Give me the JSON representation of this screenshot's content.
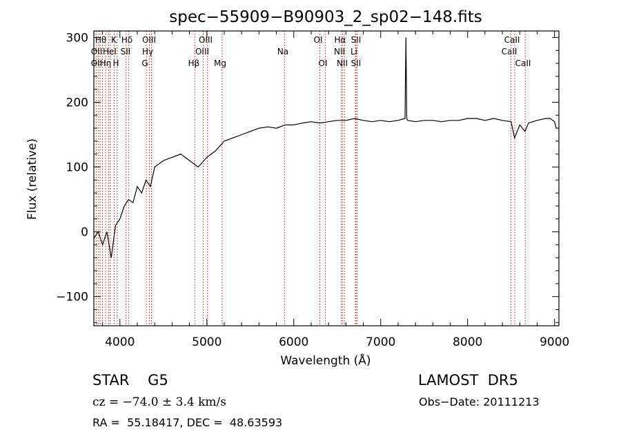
{
  "chart_data": {
    "type": "line",
    "title": "spec−55909−B90903_2_sp02−148.fits",
    "xlabel": "Wavelength (Å)",
    "ylabel": "Flux (relative)",
    "xlim": [
      3700,
      9050
    ],
    "ylim": [
      -145,
      310
    ],
    "x_ticks": [
      4000,
      5000,
      6000,
      7000,
      8000,
      9000
    ],
    "y_ticks": [
      -100,
      0,
      100,
      200,
      300
    ],
    "x_tick_labels": [
      "4000",
      "5000",
      "6000",
      "7000",
      "8000",
      "9000"
    ],
    "y_tick_labels": [
      "−100",
      "0",
      "100",
      "200",
      "300"
    ],
    "series": [
      {
        "x": [
          3700,
          3750,
          3800,
          3850,
          3900,
          3950,
          4000,
          4050,
          4100,
          4150,
          4200,
          4250,
          4300,
          4350,
          4400,
          4450,
          4500,
          4600,
          4700,
          4800,
          4900,
          5000,
          5100,
          5200,
          5300,
          5400,
          5500,
          5600,
          5700,
          5800,
          5900,
          6000,
          6100,
          6200,
          6300,
          6400,
          6500,
          6600,
          6700,
          6800,
          6900,
          7000,
          7100,
          7200,
          7280,
          7290,
          7300,
          7310,
          7400,
          7500,
          7600,
          7700,
          7800,
          7900,
          8000,
          8100,
          8200,
          8300,
          8400,
          8500,
          8540,
          8600,
          8660,
          8700,
          8800,
          8900,
          8950,
          9000,
          9020
        ],
        "y": [
          -10,
          0,
          -20,
          0,
          -40,
          10,
          20,
          40,
          50,
          45,
          70,
          60,
          80,
          70,
          100,
          105,
          110,
          115,
          120,
          110,
          100,
          115,
          125,
          140,
          145,
          150,
          155,
          160,
          162,
          160,
          165,
          165,
          168,
          170,
          168,
          170,
          172,
          172,
          175,
          172,
          170,
          172,
          170,
          172,
          175,
          300,
          175,
          172,
          170,
          172,
          172,
          170,
          172,
          172,
          175,
          175,
          172,
          175,
          172,
          170,
          145,
          165,
          155,
          168,
          172,
          175,
          175,
          170,
          160
        ]
      }
    ],
    "spectral_lines": {
      "row1": [
        "Hθ",
        "K",
        "Hδ",
        "OIII",
        "OIII",
        "OI",
        "Hα",
        "SII",
        "CaII"
      ],
      "row2": [
        "OII",
        "HeI",
        "SII",
        "Hγ",
        "OIII",
        "Na",
        "NII",
        "Li",
        "CaII"
      ],
      "row3": [
        "OII",
        "Hη",
        "H",
        "G",
        "Hβ",
        "Mg",
        "OI",
        "NII",
        "SII",
        "CaII"
      ]
    }
  },
  "info": {
    "object_type": "STAR    G5",
    "survey": "LAMOST  DR5",
    "redshift": "cz = −74.0 ± 3.4 km/s",
    "obs_date": "Obs−Date: 20111213",
    "coords": "RA =  55.18417, DEC =  48.63593"
  }
}
